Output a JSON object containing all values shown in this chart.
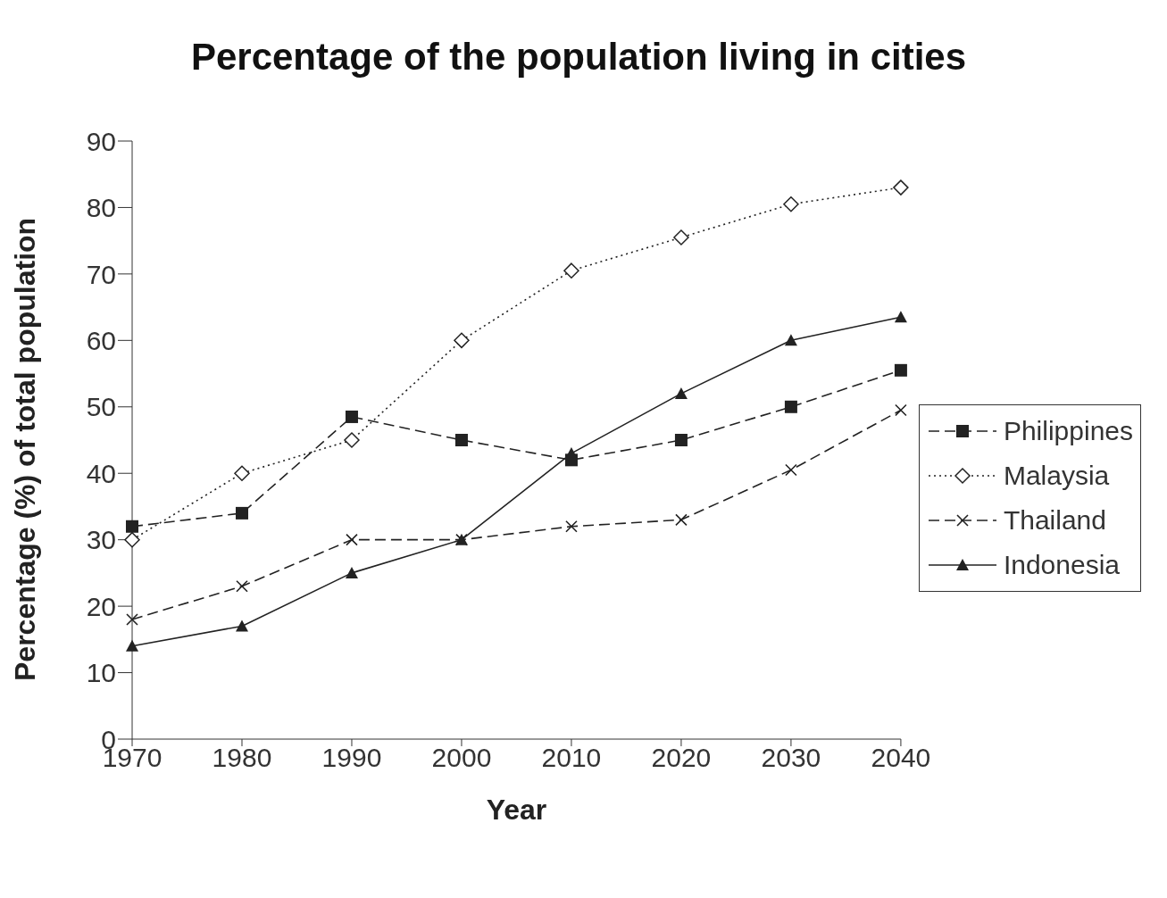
{
  "chart_data": {
    "type": "line",
    "title": "Percentage of the population living in cities",
    "xlabel": "Year",
    "ylabel": "Percentage (%) of total population",
    "x": [
      1970,
      1980,
      1990,
      2000,
      2010,
      2020,
      2030,
      2040
    ],
    "xlim": [
      1970,
      2040
    ],
    "xticks": [
      1970,
      1980,
      1990,
      2000,
      2010,
      2020,
      2030,
      2040
    ],
    "ylim": [
      0,
      90
    ],
    "yticks": [
      0,
      10,
      20,
      30,
      40,
      50,
      60,
      70,
      80,
      90
    ],
    "grid": false,
    "legend": "right",
    "series": [
      {
        "name": "Philippines",
        "color": "#222222",
        "marker": "square",
        "line_style": "dashed",
        "values": [
          32,
          34,
          48.5,
          45,
          42,
          45,
          50,
          55.5
        ]
      },
      {
        "name": "Malaysia",
        "color": "#222222",
        "marker": "diamond",
        "line_style": "dotted",
        "values": [
          30,
          40,
          45,
          60,
          70.5,
          75.5,
          80.5,
          83
        ]
      },
      {
        "name": "Thailand",
        "color": "#222222",
        "marker": "cross",
        "line_style": "dashed",
        "values": [
          18,
          23,
          30,
          30,
          32,
          33,
          40.5,
          49.5
        ]
      },
      {
        "name": "Indonesia",
        "color": "#222222",
        "marker": "triangle",
        "line_style": "solid",
        "values": [
          14,
          17,
          25,
          30,
          43,
          52,
          60,
          63.5
        ]
      }
    ]
  }
}
